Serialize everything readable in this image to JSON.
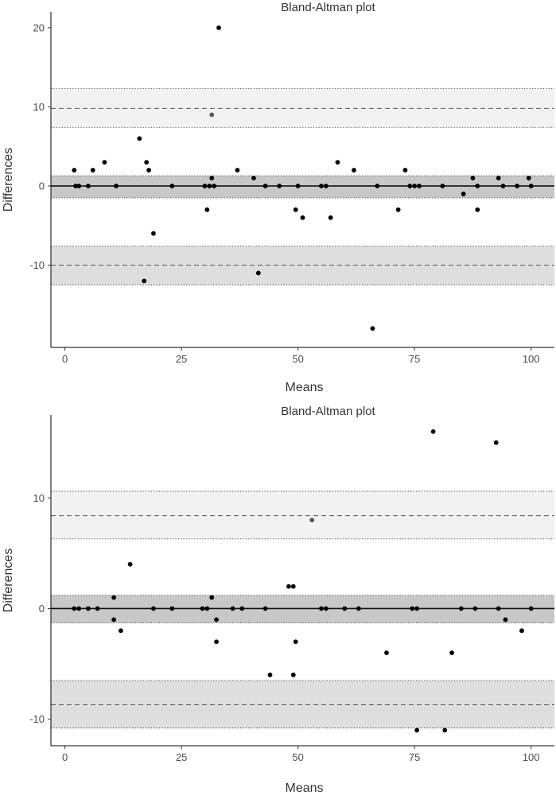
{
  "chart_data": [
    {
      "type": "scatter",
      "title": "Bland-Altman plot",
      "xlabel": "Means",
      "ylabel": "Differences",
      "xlim": [
        -3,
        105
      ],
      "ylim": [
        -20.4,
        22
      ],
      "x_ticks": [
        0,
        25,
        50,
        75,
        100
      ],
      "x_tick_labels": [
        "0",
        "25",
        "50",
        "75",
        "100"
      ],
      "y_ticks": [
        -10,
        0,
        10,
        20
      ],
      "y_tick_labels": [
        "-10",
        "0",
        "10",
        "20"
      ],
      "grid": false,
      "bias": {
        "value": 0,
        "ci": [
          -1.5,
          1.3
        ]
      },
      "upper_loa": {
        "value": 9.8,
        "ci": [
          7.4,
          12.3
        ]
      },
      "lower_loa": {
        "value": -10,
        "ci": [
          -12.5,
          -7.6
        ]
      },
      "points": [
        [
          2,
          2
        ],
        [
          2.3,
          0
        ],
        [
          3,
          0
        ],
        [
          5,
          0
        ],
        [
          6,
          2
        ],
        [
          8.5,
          3
        ],
        [
          11,
          0
        ],
        [
          16,
          6
        ],
        [
          17,
          -12
        ],
        [
          17.5,
          3
        ],
        [
          18,
          2
        ],
        [
          19,
          -6
        ],
        [
          23,
          0
        ],
        [
          30,
          0
        ],
        [
          30.5,
          -3
        ],
        [
          31,
          0
        ],
        [
          31.5,
          1
        ],
        [
          31.5,
          9
        ],
        [
          32,
          0
        ],
        [
          33,
          20
        ],
        [
          37,
          2
        ],
        [
          40.5,
          1
        ],
        [
          41.5,
          -11
        ],
        [
          43,
          0
        ],
        [
          46,
          0
        ],
        [
          49.5,
          -3
        ],
        [
          50,
          0
        ],
        [
          51,
          -4
        ],
        [
          55,
          0
        ],
        [
          56,
          0
        ],
        [
          57,
          -4
        ],
        [
          58.5,
          3
        ],
        [
          62,
          2
        ],
        [
          66,
          -18
        ],
        [
          67,
          0
        ],
        [
          71.5,
          -3
        ],
        [
          73,
          2
        ],
        [
          74,
          0
        ],
        [
          75,
          0
        ],
        [
          76,
          0
        ],
        [
          81,
          0
        ],
        [
          85.5,
          -1
        ],
        [
          87.5,
          1
        ],
        [
          88.5,
          -3
        ],
        [
          88.5,
          0
        ],
        [
          93,
          1
        ],
        [
          94,
          0
        ],
        [
          97,
          0
        ],
        [
          99.5,
          1
        ],
        [
          100,
          0
        ]
      ]
    },
    {
      "type": "scatter",
      "title": "Bland-Altman plot",
      "xlabel": "Means",
      "ylabel": "Differences",
      "xlim": [
        -3,
        105
      ],
      "ylim": [
        -12.4,
        17.5
      ],
      "x_ticks": [
        0,
        25,
        50,
        75,
        100
      ],
      "x_tick_labels": [
        "0",
        "25",
        "50",
        "75",
        "100"
      ],
      "y_ticks": [
        -10,
        0,
        10
      ],
      "y_tick_labels": [
        "-10",
        "0",
        "10"
      ],
      "grid": false,
      "bias": {
        "value": 0,
        "ci": [
          -1.3,
          1.2
        ]
      },
      "upper_loa": {
        "value": 8.4,
        "ci": [
          6.3,
          10.6
        ]
      },
      "lower_loa": {
        "value": -8.7,
        "ci": [
          -10.8,
          -6.5
        ]
      },
      "points": [
        [
          2,
          0
        ],
        [
          3,
          0
        ],
        [
          5,
          0
        ],
        [
          7,
          0
        ],
        [
          10.5,
          1
        ],
        [
          10.5,
          -1
        ],
        [
          12,
          -2
        ],
        [
          14,
          4
        ],
        [
          19,
          0
        ],
        [
          23,
          0
        ],
        [
          29.5,
          0
        ],
        [
          30.5,
          0
        ],
        [
          31.5,
          1
        ],
        [
          32.5,
          -1
        ],
        [
          32.5,
          -3
        ],
        [
          36,
          0
        ],
        [
          38,
          0
        ],
        [
          43,
          0
        ],
        [
          44,
          -6
        ],
        [
          48,
          2
        ],
        [
          49,
          2
        ],
        [
          49,
          -6
        ],
        [
          49.5,
          -3
        ],
        [
          53,
          8
        ],
        [
          55,
          0
        ],
        [
          56,
          0
        ],
        [
          60,
          0
        ],
        [
          63,
          0
        ],
        [
          69,
          -4
        ],
        [
          74.5,
          0
        ],
        [
          75.5,
          0
        ],
        [
          75.5,
          -11
        ],
        [
          79,
          16
        ],
        [
          81.5,
          -11
        ],
        [
          83,
          -4
        ],
        [
          85,
          0
        ],
        [
          88,
          0
        ],
        [
          92.5,
          15
        ],
        [
          93,
          0
        ],
        [
          94.5,
          -1
        ],
        [
          98,
          -2
        ],
        [
          100,
          0
        ]
      ]
    }
  ]
}
